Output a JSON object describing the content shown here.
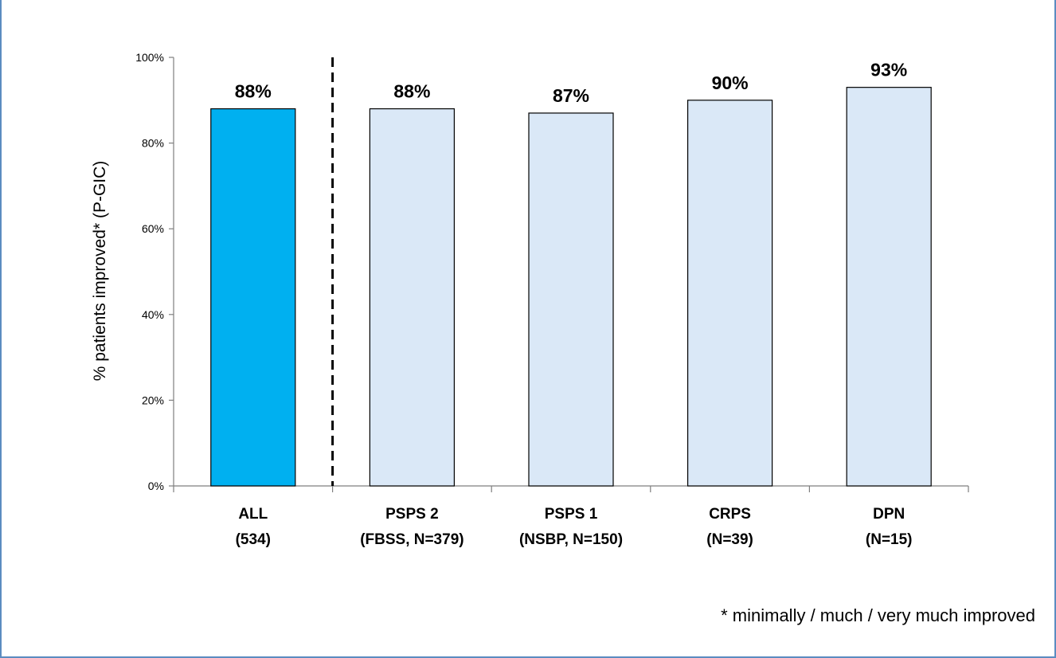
{
  "chart_data": {
    "type": "bar",
    "title": "",
    "ylabel": "% patients improved* (P-GIC)",
    "xlabel": "",
    "ylim": [
      0,
      100
    ],
    "yticks": [
      "0%",
      "20%",
      "40%",
      "60%",
      "80%",
      "100%"
    ],
    "grid": false,
    "categories": [
      {
        "line1": "ALL",
        "line2": "(534)"
      },
      {
        "line1": "PSPS 2",
        "line2": "(FBSS, N=379)"
      },
      {
        "line1": "PSPS 1",
        "line2": "(NSBP, N=150)"
      },
      {
        "line1": "CRPS",
        "line2": "(N=39)"
      },
      {
        "line1": "DPN",
        "line2": "(N=15)"
      }
    ],
    "values": [
      88,
      88,
      87,
      90,
      93
    ],
    "data_labels": [
      "88%",
      "88%",
      "87%",
      "90%",
      "93%"
    ],
    "bar_colors": [
      "#00b0f0",
      "#dae8f7",
      "#dae8f7",
      "#dae8f7",
      "#dae8f7"
    ],
    "separator": "dashed line after ALL"
  },
  "footnote": "* minimally / much / very much improved"
}
